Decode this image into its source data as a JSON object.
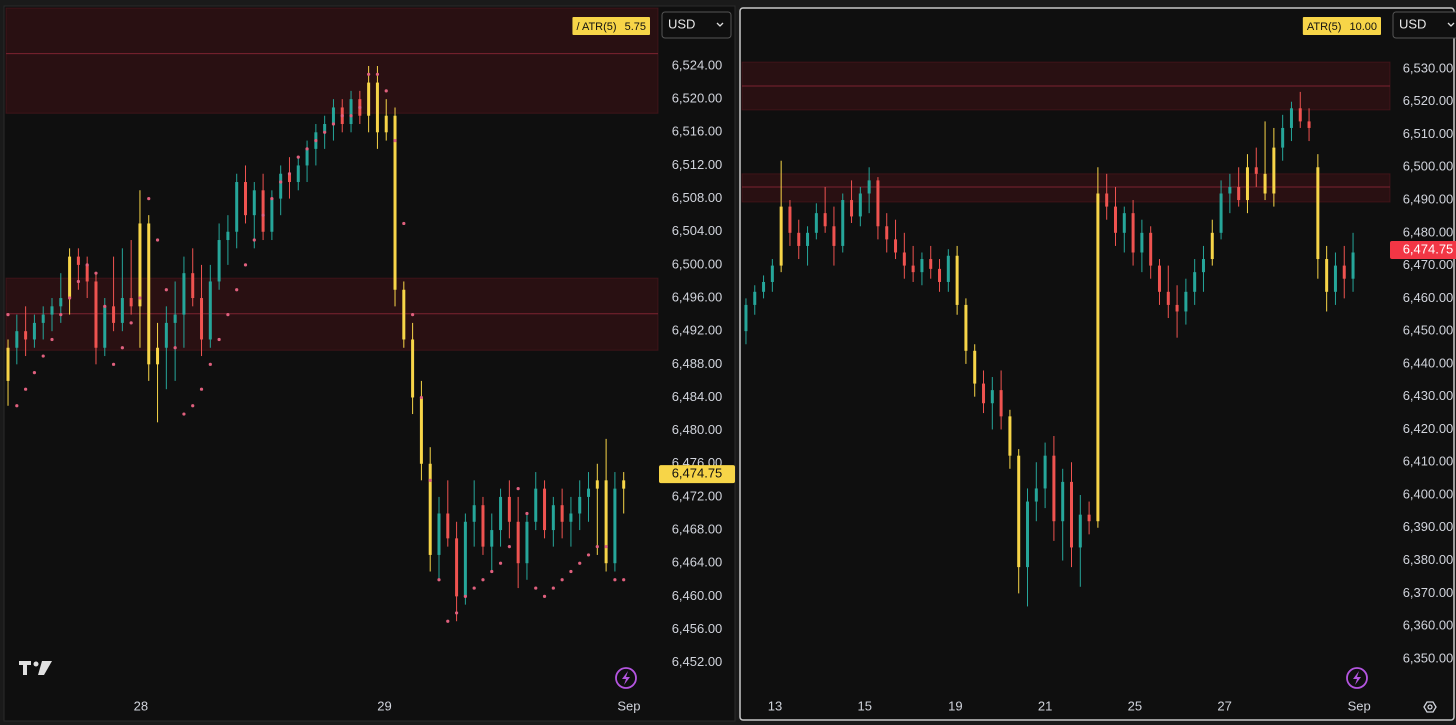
{
  "chart_data": [
    {
      "type": "candlestick",
      "ylim": [
        6448.7,
        6531.0
      ],
      "yticks": [
        {
          "value": 6452,
          "label": "6,452.00"
        },
        {
          "value": 6456,
          "label": "6,456.00"
        },
        {
          "value": 6460,
          "label": "6,460.00"
        },
        {
          "value": 6464,
          "label": "6,464.00"
        },
        {
          "value": 6468,
          "label": "6,468.00"
        },
        {
          "value": 6472,
          "label": "6,472.00"
        },
        {
          "value": 6476,
          "label": "6,476.00"
        },
        {
          "value": 6480,
          "label": "6,480.00"
        },
        {
          "value": 6484,
          "label": "6,484.00"
        },
        {
          "value": 6488,
          "label": "6,488.00"
        },
        {
          "value": 6492,
          "label": "6,492.00"
        },
        {
          "value": 6496,
          "label": "6,496.00"
        },
        {
          "value": 6500,
          "label": "6,500.00"
        },
        {
          "value": 6504,
          "label": "6,504.00"
        },
        {
          "value": 6508,
          "label": "6,508.00"
        },
        {
          "value": 6512,
          "label": "6,512.00"
        },
        {
          "value": 6516,
          "label": "6,516.00"
        },
        {
          "value": 6520,
          "label": "6,520.00"
        },
        {
          "value": 6524,
          "label": "6,524.00"
        }
      ],
      "xlim": [
        -0.23,
        73.9
      ],
      "xticks": [
        {
          "value": 15.1,
          "label": "28"
        },
        {
          "value": 42.8,
          "label": "29"
        },
        {
          "value": 70.6,
          "label": "Sep"
        }
      ],
      "currency": "USD",
      "atr_label": "/ ATR(5)",
      "atr_value": 5.75,
      "last_price": {
        "value": 6474.75,
        "label": "6,474.75"
      },
      "last_price_color": "#f7d548",
      "zones": [
        {
          "top": 6531,
          "bottom": 6518.3,
          "line": 6525.5
        },
        {
          "top": 6498.4,
          "bottom": 6489.7,
          "line": 6494.1
        }
      ],
      "colors": {
        "up": "#26a69a",
        "down": "#ef5350",
        "hot": "#f7d548",
        "sar": "#e0607e"
      },
      "hot_candles": [
        0,
        7,
        15,
        16,
        17,
        41,
        42,
        43,
        44,
        45,
        46,
        47,
        48,
        67,
        68,
        70
      ],
      "ohlc": [
        [
          6486,
          6491,
          6483,
          6490
        ],
        [
          6490,
          6494,
          6488,
          6492
        ],
        [
          6492,
          6495,
          6489,
          6491
        ],
        [
          6491,
          6494,
          6490,
          6493
        ],
        [
          6493,
          6495,
          6491,
          6494
        ],
        [
          6494,
          6496,
          6492,
          6495
        ],
        [
          6495,
          6499,
          6493,
          6496
        ],
        [
          6496,
          6502,
          6494,
          6501
        ],
        [
          6501,
          6502,
          6497,
          6500
        ],
        [
          6500,
          6501,
          6496,
          6498
        ],
        [
          6498,
          6499,
          6488,
          6490
        ],
        [
          6490,
          6496,
          6489,
          6495
        ],
        [
          6495,
          6501,
          6492,
          6493
        ],
        [
          6493,
          6502,
          6492,
          6496
        ],
        [
          6496,
          6503,
          6494,
          6495
        ],
        [
          6495,
          6509,
          6490,
          6505
        ],
        [
          6505,
          6506,
          6486,
          6488
        ],
        [
          6488,
          6493,
          6481,
          6490
        ],
        [
          6490,
          6495,
          6485,
          6493
        ],
        [
          6493,
          6498,
          6486,
          6494
        ],
        [
          6494,
          6501,
          6490,
          6499
        ],
        [
          6499,
          6502,
          6495,
          6496
        ],
        [
          6496,
          6500,
          6489,
          6491
        ],
        [
          6491,
          6500,
          6490,
          6498
        ],
        [
          6498,
          6505,
          6497,
          6503
        ],
        [
          6503,
          6506,
          6500,
          6504
        ],
        [
          6504,
          6511,
          6502,
          6510
        ],
        [
          6510,
          6512,
          6505,
          6506
        ],
        [
          6506,
          6510,
          6502,
          6509
        ],
        [
          6509,
          6511,
          6503,
          6504
        ],
        [
          6504,
          6509,
          6503,
          6508
        ],
        [
          6508,
          6512,
          6506,
          6511
        ],
        [
          6511,
          6513,
          6508,
          6510
        ],
        [
          6510,
          6513,
          6509,
          6512
        ],
        [
          6512,
          6515,
          6510,
          6514
        ],
        [
          6514,
          6517,
          6512,
          6516
        ],
        [
          6516,
          6518,
          6514,
          6517
        ],
        [
          6517,
          6520,
          6515,
          6519
        ],
        [
          6519,
          6520,
          6516,
          6517
        ],
        [
          6517,
          6521,
          6516,
          6520
        ],
        [
          6520,
          6521,
          6517,
          6518
        ],
        [
          6518,
          6524,
          6516,
          6522
        ],
        [
          6522,
          6524,
          6514,
          6516
        ],
        [
          6516,
          6520,
          6515,
          6518
        ],
        [
          6518,
          6519,
          6495,
          6497
        ],
        [
          6497,
          6498,
          6490,
          6491
        ],
        [
          6491,
          6493,
          6482,
          6484
        ],
        [
          6484,
          6486,
          6474,
          6476
        ],
        [
          6476,
          6478,
          6463,
          6465
        ],
        [
          6465,
          6472,
          6462,
          6470
        ],
        [
          6470,
          6474,
          6466,
          6467
        ],
        [
          6467,
          6469,
          6457,
          6460
        ],
        [
          6460,
          6470,
          6459,
          6469
        ],
        [
          6469,
          6474,
          6466,
          6471
        ],
        [
          6471,
          6472,
          6465,
          6466
        ],
        [
          6466,
          6470,
          6463,
          6468
        ],
        [
          6468,
          6473,
          6466,
          6472
        ],
        [
          6472,
          6474,
          6467,
          6469
        ],
        [
          6469,
          6472,
          6461,
          6464
        ],
        [
          6464,
          6470,
          6462,
          6469
        ],
        [
          6469,
          6475,
          6468,
          6473
        ],
        [
          6473,
          6474,
          6467,
          6468
        ],
        [
          6468,
          6472,
          6466,
          6471
        ],
        [
          6471,
          6473,
          6467,
          6469
        ],
        [
          6469,
          6472,
          6466,
          6470
        ],
        [
          6470,
          6474,
          6468,
          6472
        ],
        [
          6472,
          6475,
          6469,
          6473
        ],
        [
          6473,
          6476,
          6465,
          6474
        ],
        [
          6474,
          6479,
          6463,
          6464
        ],
        [
          6464,
          6475,
          6463,
          6473
        ],
        [
          6473,
          6475,
          6470,
          6474
        ]
      ],
      "sar": [
        6494,
        6483,
        6485,
        6487,
        6489,
        6491,
        6494,
        6496,
        6498,
        6500,
        6499,
        6495,
        6488,
        6490,
        6493,
        6496,
        6508,
        6503,
        6497,
        6490,
        6482,
        6483,
        6485,
        6488,
        6491,
        6494,
        6497,
        6500,
        6503,
        6506,
        6508,
        6510,
        6511,
        6513,
        6514,
        6515,
        6516,
        6517,
        6518,
        6518,
        6519,
        6523,
        6523,
        6521,
        6515,
        6505,
        6494,
        6484,
        6474,
        6462,
        6457,
        6458,
        6460,
        6461,
        6462,
        6463,
        6464,
        6466,
        6473,
        6470,
        6461,
        6460,
        6461,
        6462,
        6463,
        6464,
        6465,
        6466,
        6466,
        6462,
        6462
      ]
    },
    {
      "type": "candlestick",
      "ylim": [
        6340.5,
        6548.6
      ],
      "yticks": [
        {
          "value": 6350,
          "label": "6,350.00"
        },
        {
          "value": 6360,
          "label": "6,360.00"
        },
        {
          "value": 6370,
          "label": "6,370.00"
        },
        {
          "value": 6380,
          "label": "6,380.00"
        },
        {
          "value": 6390,
          "label": "6,390.00"
        },
        {
          "value": 6400,
          "label": "6,400.00"
        },
        {
          "value": 6410,
          "label": "6,410.00"
        },
        {
          "value": 6420,
          "label": "6,420.00"
        },
        {
          "value": 6430,
          "label": "6,430.00"
        },
        {
          "value": 6440,
          "label": "6,440.00"
        },
        {
          "value": 6450,
          "label": "6,450.00"
        },
        {
          "value": 6460,
          "label": "6,460.00"
        },
        {
          "value": 6470,
          "label": "6,470.00"
        },
        {
          "value": 6480,
          "label": "6,480.00"
        },
        {
          "value": 6490,
          "label": "6,490.00"
        },
        {
          "value": 6500,
          "label": "6,500.00"
        },
        {
          "value": 6510,
          "label": "6,510.00"
        },
        {
          "value": 6520,
          "label": "6,520.00"
        },
        {
          "value": 6530,
          "label": "6,530.00"
        }
      ],
      "xlim": [
        -0.45,
        73.2
      ],
      "xticks": [
        {
          "value": 3.3,
          "label": "13"
        },
        {
          "value": 13.5,
          "label": "15"
        },
        {
          "value": 23.8,
          "label": "19"
        },
        {
          "value": 34.0,
          "label": "21"
        },
        {
          "value": 44.2,
          "label": "25"
        },
        {
          "value": 54.4,
          "label": "27"
        },
        {
          "value": 69.7,
          "label": "Sep"
        }
      ],
      "currency": "USD",
      "atr_label": "ATR(5)",
      "atr_value": 10,
      "atr_value_label": "10.00",
      "last_price": {
        "value": 6474.75,
        "label": "6,474.75"
      },
      "last_price_color": "#f23645",
      "zones": [
        {
          "top": 6532.1,
          "bottom": 6517.5,
          "line": 6524.8
        },
        {
          "top": 6498,
          "bottom": 6489.4,
          "line": 6494
        }
      ],
      "colors": {
        "up": "#26a69a",
        "down": "#ef5350",
        "hot": "#f7d548"
      },
      "hot_candles": [
        4,
        24,
        25,
        26,
        30,
        31,
        40,
        53,
        57,
        59,
        60,
        65,
        66
      ],
      "ohlc": [
        [
          6450,
          6460,
          6446,
          6458
        ],
        [
          6458,
          6464,
          6455,
          6462
        ],
        [
          6462,
          6467,
          6460,
          6465
        ],
        [
          6465,
          6472,
          6462,
          6470
        ],
        [
          6470,
          6502,
          6468,
          6488
        ],
        [
          6488,
          6490,
          6476,
          6480
        ],
        [
          6480,
          6484,
          6472,
          6476
        ],
        [
          6476,
          6482,
          6470,
          6480
        ],
        [
          6480,
          6489,
          6478,
          6486
        ],
        [
          6486,
          6494,
          6480,
          6482
        ],
        [
          6482,
          6488,
          6470,
          6476
        ],
        [
          6476,
          6492,
          6474,
          6490
        ],
        [
          6490,
          6496,
          6483,
          6485
        ],
        [
          6485,
          6494,
          6482,
          6492
        ],
        [
          6492,
          6500,
          6486,
          6496
        ],
        [
          6496,
          6497,
          6478,
          6482
        ],
        [
          6482,
          6486,
          6474,
          6478
        ],
        [
          6478,
          6484,
          6472,
          6474
        ],
        [
          6474,
          6480,
          6466,
          6470
        ],
        [
          6470,
          6476,
          6465,
          6468
        ],
        [
          6468,
          6474,
          6464,
          6472
        ],
        [
          6472,
          6476,
          6466,
          6469
        ],
        [
          6469,
          6472,
          6462,
          6465
        ],
        [
          6465,
          6475,
          6462,
          6473
        ],
        [
          6473,
          6476,
          6455,
          6458
        ],
        [
          6458,
          6460,
          6440,
          6444
        ],
        [
          6444,
          6446,
          6430,
          6434
        ],
        [
          6434,
          6438,
          6425,
          6428
        ],
        [
          6428,
          6436,
          6420,
          6432
        ],
        [
          6432,
          6438,
          6420,
          6424
        ],
        [
          6424,
          6426,
          6408,
          6412
        ],
        [
          6412,
          6414,
          6370,
          6378
        ],
        [
          6378,
          6402,
          6366,
          6398
        ],
        [
          6398,
          6410,
          6392,
          6402
        ],
        [
          6402,
          6416,
          6396,
          6412
        ],
        [
          6412,
          6418,
          6386,
          6392
        ],
        [
          6392,
          6408,
          6380,
          6404
        ],
        [
          6404,
          6410,
          6378,
          6384
        ],
        [
          6384,
          6400,
          6372,
          6394
        ],
        [
          6394,
          6398,
          6388,
          6392
        ],
        [
          6392,
          6500,
          6390,
          6492
        ],
        [
          6492,
          6498,
          6484,
          6488
        ],
        [
          6488,
          6494,
          6476,
          6480
        ],
        [
          6480,
          6488,
          6474,
          6486
        ],
        [
          6486,
          6490,
          6470,
          6474
        ],
        [
          6474,
          6484,
          6468,
          6480
        ],
        [
          6480,
          6482,
          6466,
          6470
        ],
        [
          6470,
          6472,
          6458,
          6462
        ],
        [
          6462,
          6470,
          6454,
          6458
        ],
        [
          6458,
          6464,
          6448,
          6456
        ],
        [
          6456,
          6466,
          6452,
          6462
        ],
        [
          6462,
          6472,
          6458,
          6468
        ],
        [
          6468,
          6476,
          6462,
          6472
        ],
        [
          6472,
          6484,
          6470,
          6480
        ],
        [
          6480,
          6496,
          6478,
          6492
        ],
        [
          6492,
          6498,
          6486,
          6494
        ],
        [
          6494,
          6500,
          6488,
          6490
        ],
        [
          6490,
          6504,
          6486,
          6500
        ],
        [
          6500,
          6506,
          6494,
          6498
        ],
        [
          6498,
          6514,
          6490,
          6492
        ],
        [
          6492,
          6512,
          6488,
          6506
        ],
        [
          6506,
          6516,
          6502,
          6512
        ],
        [
          6512,
          6520,
          6508,
          6518
        ],
        [
          6518,
          6523,
          6512,
          6514
        ],
        [
          6514,
          6518,
          6508,
          6512
        ],
        [
          6500,
          6504,
          6466,
          6472
        ],
        [
          6472,
          6476,
          6456,
          6462
        ],
        [
          6462,
          6474,
          6458,
          6470
        ],
        [
          6470,
          6476,
          6460,
          6466
        ],
        [
          6466,
          6480,
          6462,
          6474
        ]
      ]
    }
  ]
}
